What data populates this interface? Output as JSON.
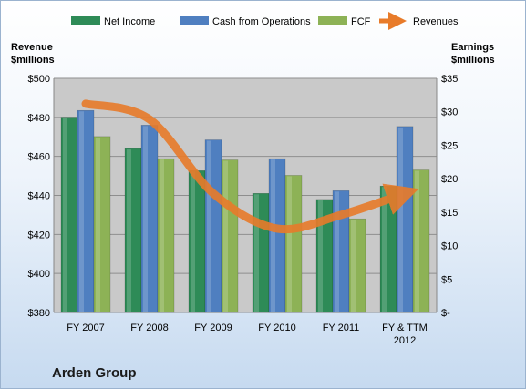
{
  "chart_data": {
    "type": "bar",
    "title": "Arden Group",
    "categories": [
      "FY 2007",
      "FY 2008",
      "FY 2009",
      "FY 2010",
      "FY 2011",
      "FY & TTM|2012"
    ],
    "left_axis": {
      "label_line1": "Revenue",
      "label_line2": "$millions",
      "ylim": [
        380,
        500
      ],
      "ticks": [
        "$380",
        "$400",
        "$420",
        "$440",
        "$460",
        "$480",
        "$500"
      ]
    },
    "right_axis": {
      "label_line1": "Earnings",
      "label_line2": "$millions",
      "ylim": [
        0,
        35
      ],
      "ticks": [
        "$-",
        "$5",
        "$10",
        "$15",
        "$20",
        "$25",
        "$30",
        "$35"
      ]
    },
    "grid": true,
    "legend_position": "top",
    "series": [
      {
        "name": "Net Income",
        "axis": "right",
        "kind": "bar",
        "color": "#2e8b57",
        "values": [
          29.2,
          24.5,
          21.2,
          17.8,
          16.9,
          18.9
        ]
      },
      {
        "name": "Cash from Operations",
        "axis": "right",
        "kind": "bar",
        "color": "#4f7fc0",
        "values": [
          30.2,
          28.0,
          25.8,
          23.0,
          18.2,
          27.8
        ]
      },
      {
        "name": "FCF",
        "axis": "right",
        "kind": "bar",
        "color": "#8db256",
        "values": [
          26.3,
          23.0,
          22.8,
          20.5,
          14.0,
          21.3
        ]
      },
      {
        "name": "Revenues",
        "axis": "left",
        "kind": "arrow-line",
        "color": "#e87b2a",
        "values": [
          487,
          479,
          441,
          423,
          430,
          441
        ]
      }
    ]
  }
}
